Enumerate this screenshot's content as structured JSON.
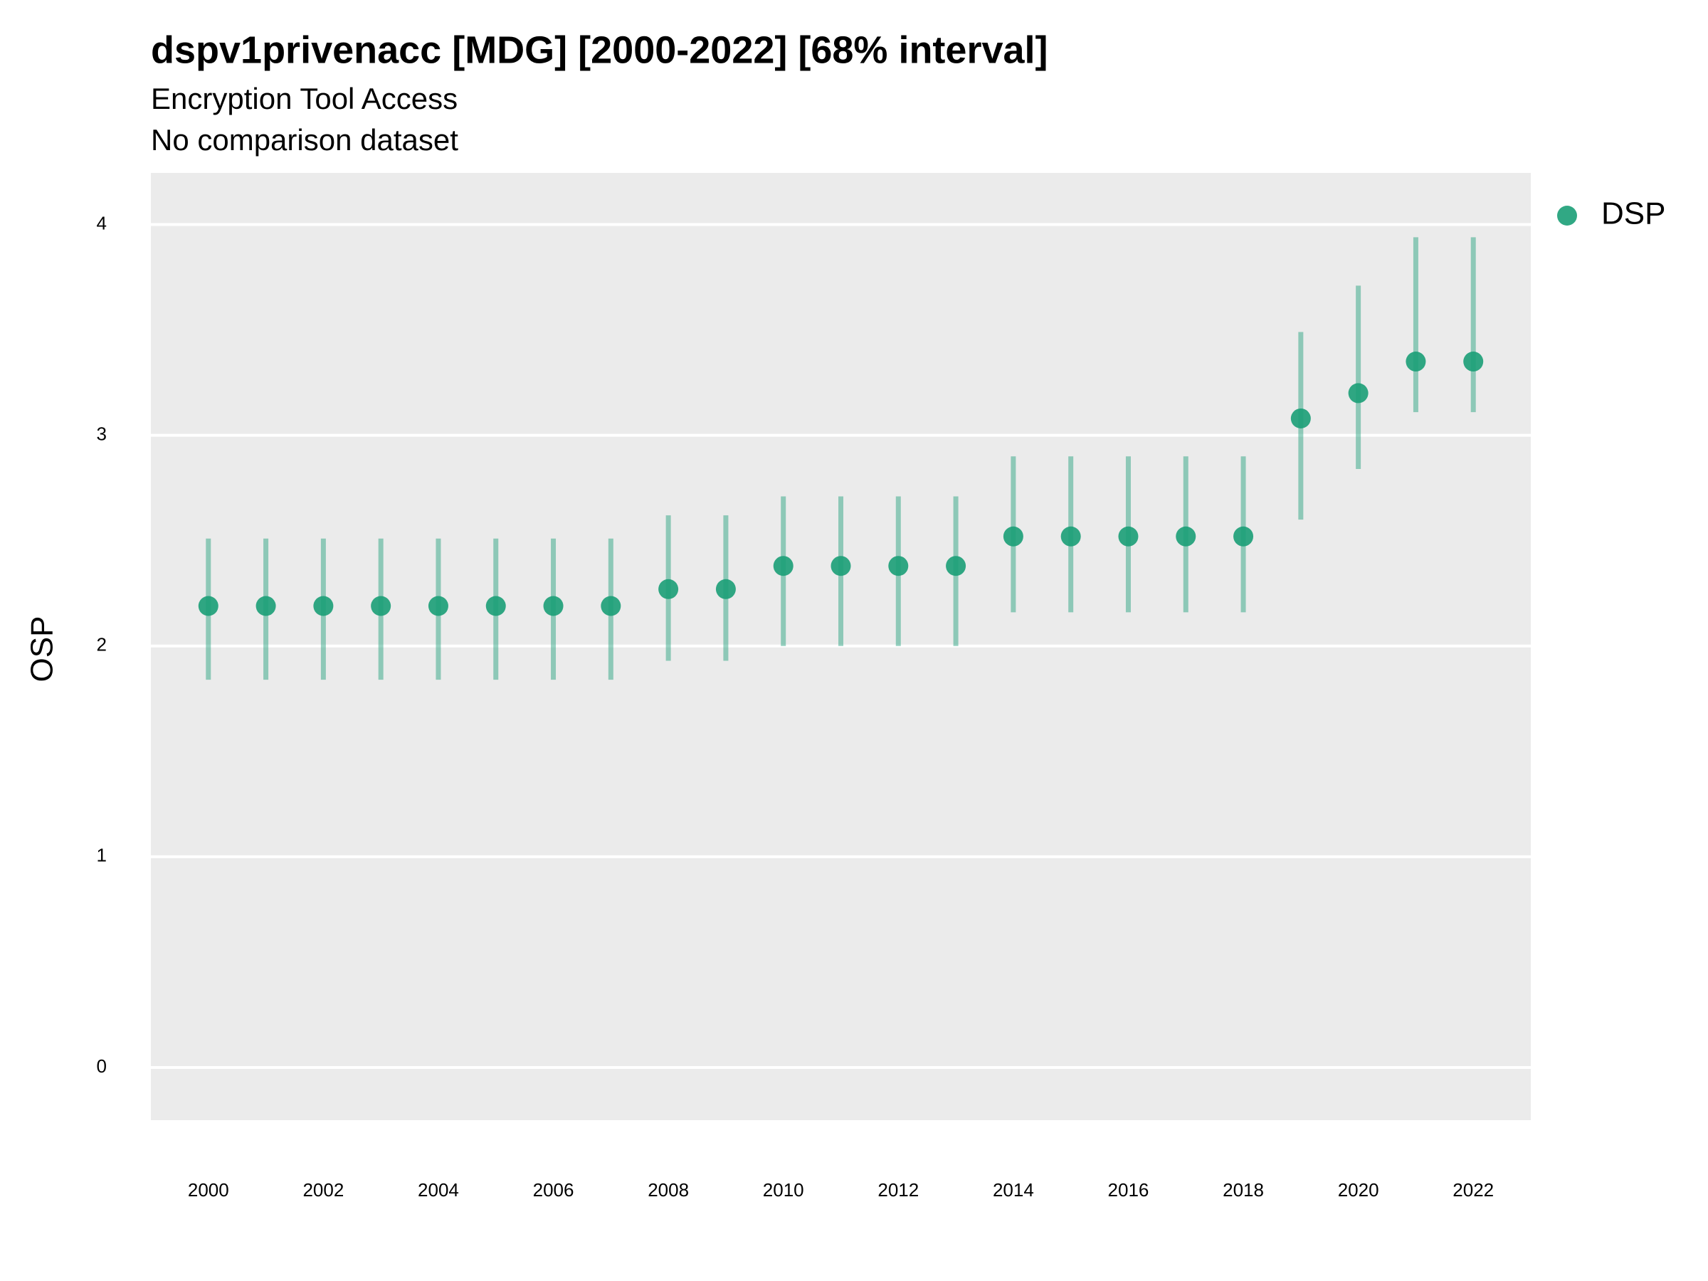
{
  "chart_data": {
    "type": "pointrange",
    "title": "dspv1privenacc [MDG] [2000-2022] [68% interval]",
    "subtitle": [
      "Encryption Tool Access",
      "No comparison dataset"
    ],
    "y_label": "OSP",
    "x": [
      2000,
      2001,
      2002,
      2003,
      2004,
      2005,
      2006,
      2007,
      2008,
      2009,
      2010,
      2011,
      2012,
      2013,
      2014,
      2015,
      2016,
      2017,
      2018,
      2019,
      2020,
      2021,
      2022
    ],
    "series": [
      {
        "name": "DSP",
        "color": "#1b9e77",
        "values": [
          2.19,
          2.19,
          2.19,
          2.19,
          2.19,
          2.19,
          2.19,
          2.19,
          2.27,
          2.27,
          2.38,
          2.38,
          2.38,
          2.38,
          2.52,
          2.52,
          2.52,
          2.52,
          2.52,
          3.08,
          3.2,
          3.35,
          3.35
        ],
        "lower": [
          1.84,
          1.84,
          1.84,
          1.84,
          1.84,
          1.84,
          1.84,
          1.84,
          1.93,
          1.93,
          2.0,
          2.0,
          2.0,
          2.0,
          2.16,
          2.16,
          2.16,
          2.16,
          2.16,
          2.6,
          2.84,
          3.11,
          3.11
        ],
        "upper": [
          2.51,
          2.51,
          2.51,
          2.51,
          2.51,
          2.51,
          2.51,
          2.51,
          2.62,
          2.62,
          2.71,
          2.71,
          2.71,
          2.71,
          2.9,
          2.9,
          2.9,
          2.9,
          2.9,
          3.49,
          3.71,
          3.94,
          3.94
        ]
      }
    ],
    "xlim": [
      1999,
      2023
    ],
    "xticks": [
      2000,
      2002,
      2004,
      2006,
      2008,
      2010,
      2012,
      2014,
      2016,
      2018,
      2020,
      2022
    ],
    "ylim": [
      -0.25,
      4.245
    ],
    "yticks": [
      0,
      1,
      2,
      3,
      4
    ],
    "grid": true,
    "legend": "right"
  }
}
